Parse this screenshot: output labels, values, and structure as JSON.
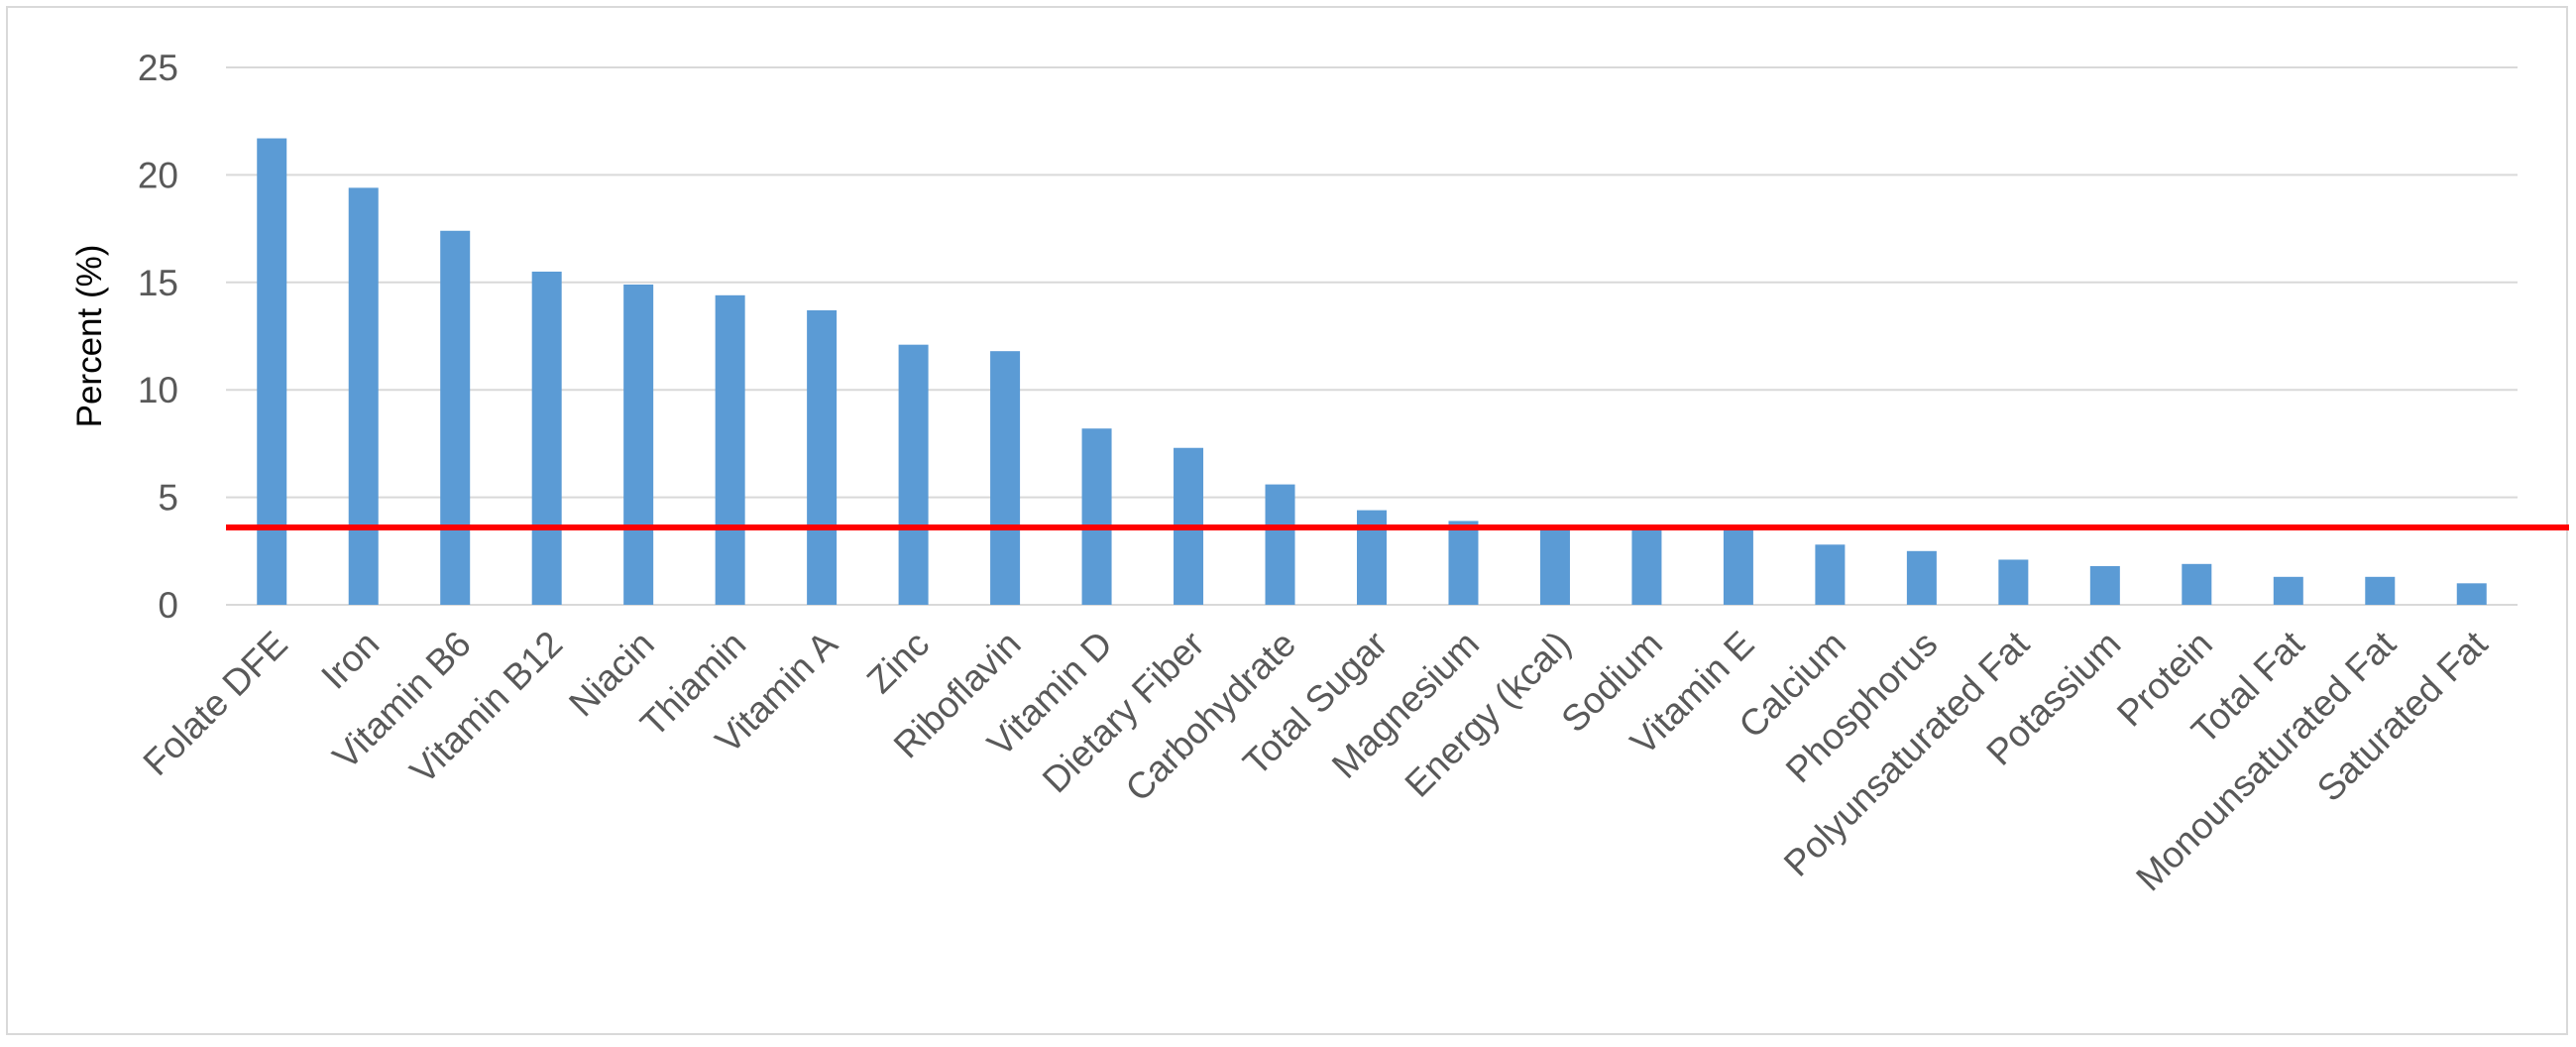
{
  "chart_data": {
    "type": "bar",
    "title": "",
    "xlabel": "",
    "ylabel": "Percent (%)",
    "ylim": [
      0,
      25
    ],
    "yticks": [
      0,
      5,
      10,
      15,
      20,
      25
    ],
    "grid": true,
    "legend": "none",
    "categories": [
      "Folate DFE",
      "Iron",
      "Vitamin B6",
      "Vitamin B12",
      "Niacin",
      "Thiamin",
      "Vitamin A",
      "Zinc",
      "Riboflavin",
      "Vitamin D",
      "Dietary Fiber",
      "Carbohydrate",
      "Total Sugar",
      "Magnesium",
      "Energy (kcal)",
      "Sodium",
      "Vitamin E",
      "Calcium",
      "Phosphorus",
      "Polyunsaturated Fat",
      "Potassium",
      "Protein",
      "Total Fat",
      "Monounsaturated Fat",
      "Saturated Fat"
    ],
    "values": [
      21.7,
      19.4,
      17.4,
      15.5,
      14.9,
      14.4,
      13.7,
      12.1,
      11.8,
      8.2,
      7.3,
      5.6,
      4.4,
      3.9,
      3.6,
      3.6,
      3.5,
      2.8,
      2.5,
      2.1,
      1.8,
      1.9,
      1.3,
      1.3,
      1.0
    ],
    "reference_line": {
      "value": 3.6
    },
    "colors": {
      "bar": "#5b9bd5",
      "reference_line": "#ff0000",
      "grid": "#d9d9d9",
      "text": "#595959"
    }
  }
}
